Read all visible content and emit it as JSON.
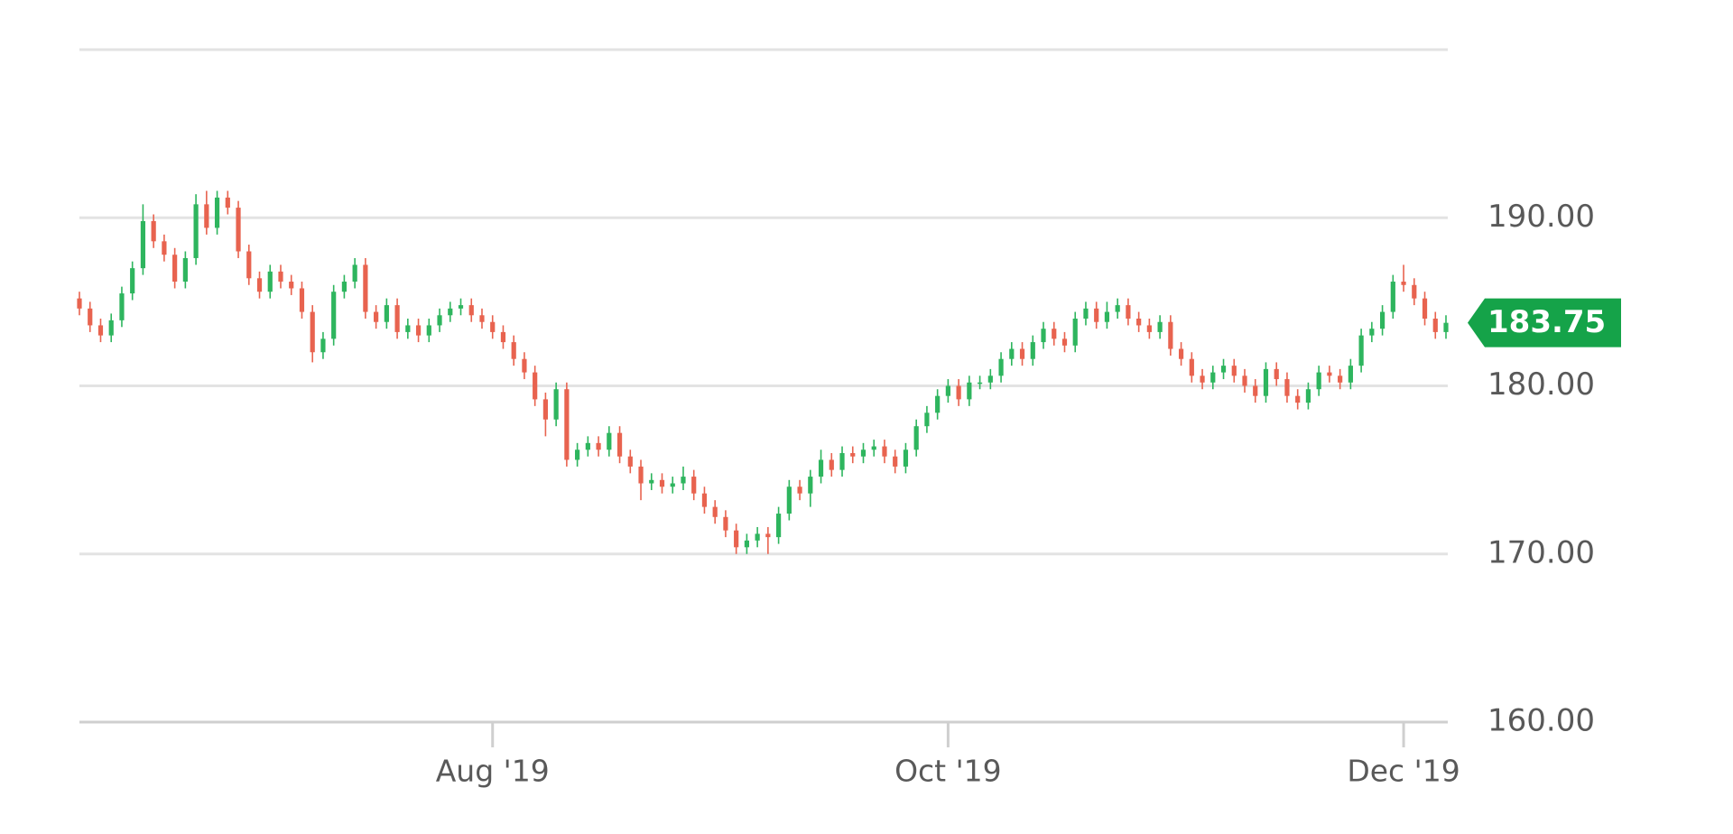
{
  "chart_data": {
    "type": "candlestick",
    "open": [
      185.2,
      184.6,
      183.6,
      183.0,
      183.9,
      185.5,
      187.0,
      189.8,
      188.6,
      187.8,
      186.2,
      187.6,
      190.8,
      189.4,
      191.2,
      190.6,
      188.0,
      186.4,
      185.6,
      186.8,
      186.2,
      185.8,
      184.4,
      182.0,
      182.8,
      185.6,
      186.2,
      187.2,
      184.4,
      183.8,
      184.8,
      183.2,
      183.6,
      183.0,
      183.6,
      184.2,
      184.6,
      184.8,
      184.2,
      183.8,
      183.2,
      182.6,
      181.6,
      180.8,
      179.2,
      178.0,
      179.8,
      175.6,
      176.2,
      176.6,
      176.2,
      177.2,
      175.8,
      175.2,
      174.2,
      174.4,
      174.0,
      174.2,
      174.6,
      173.6,
      172.8,
      172.2,
      171.4,
      170.4,
      170.8,
      171.2,
      171.0,
      172.4,
      174.0,
      173.6,
      174.6,
      175.6,
      175.0,
      176.0,
      175.8,
      176.2,
      176.4,
      175.8,
      175.2,
      176.2,
      177.6,
      178.4,
      179.4,
      180.0,
      179.2,
      180.2,
      180.2,
      180.6,
      181.6,
      182.2,
      181.6,
      182.6,
      183.4,
      182.8,
      182.4,
      184.0,
      184.6,
      183.8,
      184.4,
      184.8,
      184.0,
      183.6,
      183.2,
      183.8,
      182.2,
      181.6,
      180.6,
      180.2,
      180.8,
      181.2,
      180.6,
      180.0,
      179.4,
      181.0,
      180.4,
      179.4,
      179.0,
      179.8,
      180.8,
      180.6,
      180.2,
      181.2,
      183.0,
      183.4,
      184.4,
      186.2,
      186.0,
      185.2,
      184.0,
      183.2
    ],
    "high": [
      185.6,
      185.0,
      184.0,
      184.3,
      185.9,
      187.4,
      190.8,
      190.2,
      189.0,
      188.2,
      188.0,
      191.4,
      191.6,
      191.6,
      191.6,
      191.0,
      188.4,
      186.8,
      187.2,
      187.2,
      186.6,
      186.2,
      184.8,
      183.2,
      186.0,
      186.6,
      187.6,
      187.6,
      184.8,
      185.2,
      185.2,
      184.0,
      184.0,
      184.0,
      184.6,
      185.0,
      185.2,
      185.2,
      184.6,
      184.2,
      183.6,
      183.0,
      182.0,
      181.2,
      179.6,
      180.2,
      180.2,
      176.6,
      177.0,
      177.0,
      177.6,
      177.6,
      176.2,
      175.6,
      174.8,
      174.8,
      174.6,
      175.2,
      175.0,
      174.0,
      173.2,
      172.6,
      171.8,
      171.2,
      171.6,
      171.6,
      172.8,
      174.4,
      174.4,
      175.0,
      176.2,
      176.0,
      176.4,
      176.4,
      176.6,
      176.8,
      176.8,
      176.2,
      176.6,
      178.0,
      178.8,
      179.8,
      180.4,
      180.4,
      180.6,
      180.6,
      181.0,
      182.0,
      182.6,
      182.6,
      183.0,
      183.8,
      183.8,
      183.2,
      184.4,
      185.0,
      185.0,
      185.0,
      185.2,
      185.2,
      184.4,
      184.0,
      184.2,
      184.2,
      182.6,
      182.0,
      181.0,
      181.2,
      181.6,
      181.6,
      181.0,
      180.4,
      181.4,
      181.4,
      180.8,
      179.8,
      180.2,
      181.2,
      181.2,
      181.0,
      181.6,
      183.4,
      183.8,
      184.8,
      186.6,
      187.2,
      186.4,
      185.6,
      184.4,
      184.2
    ],
    "low": [
      184.2,
      183.2,
      182.6,
      182.6,
      183.5,
      185.1,
      186.6,
      188.2,
      187.4,
      185.8,
      185.8,
      187.2,
      189.0,
      189.0,
      190.2,
      187.6,
      186.0,
      185.2,
      185.2,
      185.8,
      185.4,
      184.0,
      181.4,
      181.6,
      182.4,
      185.2,
      185.8,
      184.0,
      183.4,
      183.4,
      182.8,
      182.8,
      182.6,
      182.6,
      183.2,
      183.8,
      184.2,
      183.8,
      183.4,
      182.8,
      182.2,
      181.2,
      180.4,
      178.8,
      177.0,
      177.6,
      175.2,
      175.2,
      175.8,
      175.8,
      175.8,
      175.4,
      174.8,
      173.2,
      173.8,
      173.6,
      173.6,
      173.8,
      173.2,
      172.4,
      171.8,
      171.0,
      170.0,
      170.0,
      170.4,
      170.0,
      170.6,
      172.0,
      173.2,
      172.8,
      174.2,
      174.6,
      174.6,
      175.4,
      175.4,
      175.8,
      175.4,
      174.8,
      174.8,
      175.8,
      177.2,
      178.0,
      179.0,
      178.8,
      178.8,
      179.8,
      179.8,
      180.2,
      181.2,
      181.2,
      181.2,
      182.2,
      182.4,
      182.0,
      182.0,
      183.6,
      183.4,
      183.4,
      184.0,
      183.6,
      183.2,
      182.8,
      182.8,
      181.8,
      181.2,
      180.2,
      179.8,
      179.8,
      180.4,
      180.2,
      179.6,
      179.0,
      179.0,
      180.0,
      179.0,
      178.6,
      178.6,
      179.4,
      180.2,
      179.8,
      179.8,
      180.8,
      182.6,
      183.0,
      184.0,
      185.6,
      184.8,
      183.6,
      182.8,
      182.8
    ],
    "close": [
      184.6,
      183.6,
      183.0,
      183.9,
      185.5,
      187.0,
      189.8,
      188.6,
      187.8,
      186.2,
      187.6,
      190.8,
      189.4,
      191.2,
      190.6,
      188.0,
      186.4,
      185.6,
      186.8,
      186.2,
      185.8,
      184.4,
      182.0,
      182.8,
      185.6,
      186.2,
      187.2,
      184.4,
      183.8,
      184.8,
      183.2,
      183.6,
      183.0,
      183.6,
      184.2,
      184.6,
      184.8,
      184.2,
      183.8,
      183.2,
      182.6,
      181.6,
      180.8,
      179.2,
      178.0,
      179.8,
      175.6,
      176.2,
      176.6,
      176.2,
      177.2,
      175.8,
      175.2,
      174.2,
      174.4,
      174.0,
      174.2,
      174.6,
      173.6,
      172.8,
      172.2,
      171.4,
      170.4,
      170.8,
      171.2,
      171.0,
      172.4,
      174.0,
      173.6,
      174.6,
      175.6,
      175.0,
      176.0,
      175.8,
      176.2,
      176.4,
      175.8,
      175.2,
      176.2,
      177.6,
      178.4,
      179.4,
      180.0,
      179.2,
      180.2,
      180.2,
      180.6,
      181.6,
      182.2,
      181.6,
      182.6,
      183.4,
      182.8,
      182.4,
      184.0,
      184.6,
      183.8,
      184.4,
      184.8,
      184.0,
      183.6,
      183.2,
      183.8,
      182.2,
      181.6,
      180.6,
      180.2,
      180.8,
      181.2,
      180.6,
      180.0,
      179.4,
      181.0,
      180.4,
      179.4,
      179.0,
      179.8,
      180.8,
      180.6,
      180.2,
      181.2,
      183.0,
      183.4,
      184.4,
      186.2,
      186.0,
      185.2,
      184.0,
      183.2,
      183.75
    ],
    "up_color": "#2eb55e",
    "down_color": "#e8634f",
    "xlim": [
      0,
      129
    ],
    "xticks": [
      {
        "value": 39,
        "label": "Aug '19"
      },
      {
        "value": 82,
        "label": "Oct '19"
      },
      {
        "value": 125,
        "label": "Dec '19"
      }
    ],
    "ylim": [
      160,
      200
    ],
    "yticks": [
      {
        "value": 160,
        "label": "160.00"
      },
      {
        "value": 170,
        "label": "170.00"
      },
      {
        "value": 180,
        "label": "180.00"
      },
      {
        "value": 190,
        "label": "190.00"
      }
    ],
    "grid": true,
    "last_price": 183.75,
    "last_price_color": "#15a349"
  }
}
